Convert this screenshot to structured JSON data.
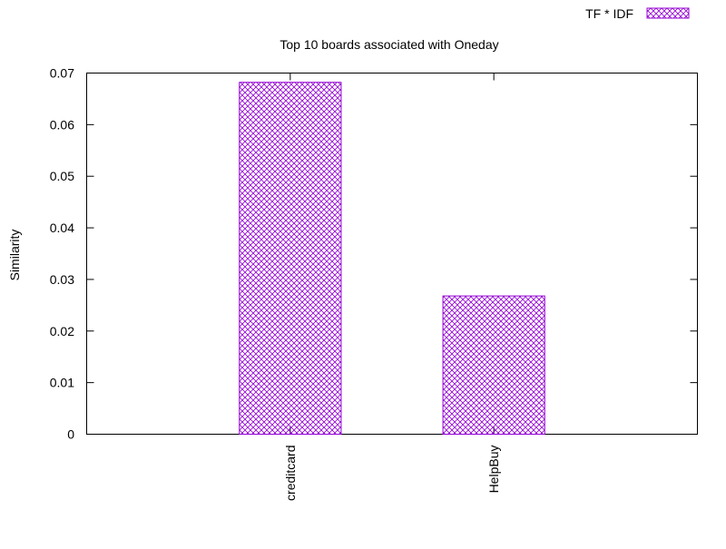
{
  "colors": {
    "bar_stroke": "#9400d3",
    "axis": "#000000",
    "background": "#ffffff"
  },
  "chart_data": {
    "type": "bar",
    "title": "Top 10 boards associated with Oneday",
    "ylabel": "Similarity",
    "xlabel": "",
    "categories": [
      "creditcard",
      "HelpBuy"
    ],
    "series": [
      {
        "name": "TF * IDF",
        "values": [
          0.0682,
          0.0268
        ]
      }
    ],
    "ylim": [
      0,
      0.07
    ],
    "yticks": [
      "0",
      "0.01",
      "0.02",
      "0.03",
      "0.04",
      "0.05",
      "0.06",
      "0.07"
    ],
    "fill_pattern": "crosshatch",
    "legend_position": "top-right",
    "grid": false
  }
}
